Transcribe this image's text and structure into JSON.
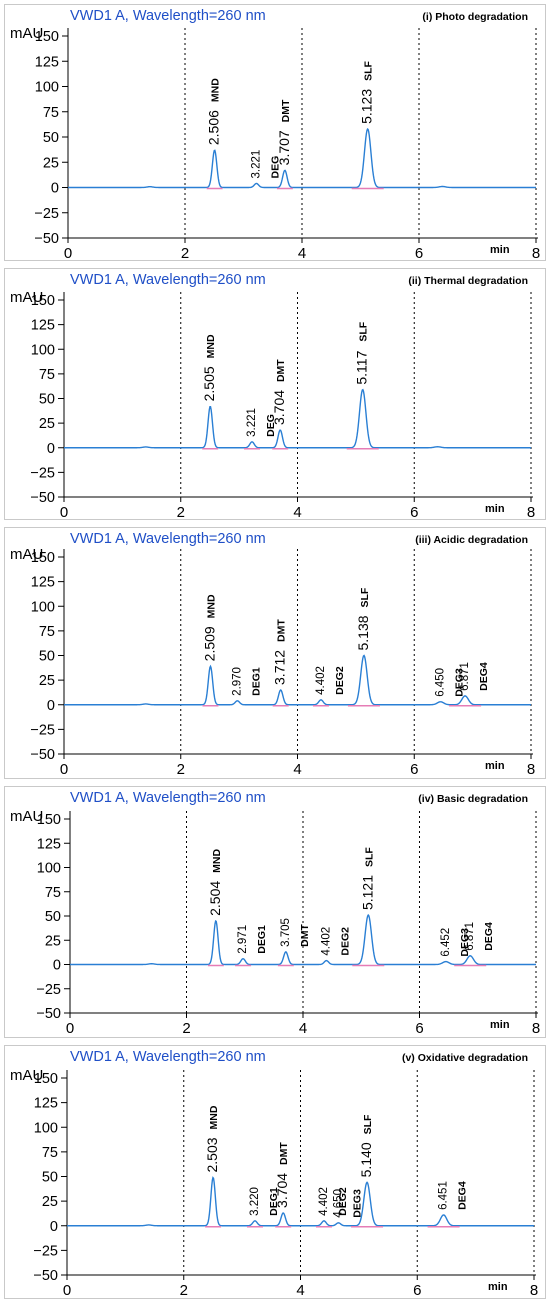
{
  "chart_data": [
    {
      "type": "line",
      "header": "VWD1 A, Wavelength=260 nm",
      "title": "(i) Photo degradation",
      "ylabel": "mAU",
      "xlabel": "min",
      "ylim": [
        -50,
        150
      ],
      "yticks": [
        "−50",
        "−25",
        "0",
        "25",
        "50",
        "75",
        "100",
        "125",
        "150"
      ],
      "xlim": [
        0,
        8
      ],
      "xticks": [
        "0",
        "2",
        "4",
        "6",
        "8"
      ],
      "grid": true,
      "peaks": [
        {
          "rt": 2.506,
          "height": 37,
          "rt_label": "2.506",
          "name": "MND",
          "big": true
        },
        {
          "rt": 3.221,
          "height": 4,
          "rt_label": "3.221",
          "name": "DEG",
          "big": false
        },
        {
          "rt": 3.707,
          "height": 17,
          "rt_label": "3.707",
          "name": "DMT",
          "big": true
        },
        {
          "rt": 5.123,
          "height": 58,
          "rt_label": "5.123",
          "name": "SLF",
          "big": true
        },
        {
          "rt": 6.4,
          "height": 1,
          "rt_label": "",
          "name": "",
          "big": false
        }
      ]
    },
    {
      "type": "line",
      "header": "VWD1 A, Wavelength=260 nm",
      "title": "(ii) Thermal degradation",
      "ylabel": "mAU",
      "xlabel": "min",
      "ylim": [
        -50,
        150
      ],
      "yticks": [
        "−50",
        "−25",
        "0",
        "25",
        "50",
        "75",
        "100",
        "125",
        "150"
      ],
      "xlim": [
        0,
        8
      ],
      "xticks": [
        "0",
        "2",
        "4",
        "6",
        "8"
      ],
      "grid": true,
      "peaks": [
        {
          "rt": 2.505,
          "height": 42,
          "rt_label": "2.505",
          "name": "MND",
          "big": true
        },
        {
          "rt": 3.221,
          "height": 6,
          "rt_label": "3.221",
          "name": "DEG",
          "big": false
        },
        {
          "rt": 3.704,
          "height": 18,
          "rt_label": "3.704",
          "name": "DMT",
          "big": true
        },
        {
          "rt": 5.117,
          "height": 59,
          "rt_label": "5.117",
          "name": "SLF",
          "big": true
        },
        {
          "rt": 6.4,
          "height": 1,
          "rt_label": "",
          "name": "",
          "big": false
        }
      ]
    },
    {
      "type": "line",
      "header": "VWD1 A, Wavelength=260 nm",
      "title": "(iii) Acidic degradation",
      "ylabel": "mAU",
      "xlabel": "min",
      "ylim": [
        -50,
        150
      ],
      "yticks": [
        "−50",
        "−25",
        "0",
        "25",
        "50",
        "75",
        "100",
        "125",
        "150"
      ],
      "xlim": [
        0,
        8
      ],
      "xticks": [
        "0",
        "2",
        "4",
        "6",
        "8"
      ],
      "grid": true,
      "peaks": [
        {
          "rt": 2.509,
          "height": 39,
          "rt_label": "2.509",
          "name": "MND",
          "big": true
        },
        {
          "rt": 2.97,
          "height": 4,
          "rt_label": "2.970",
          "name": "DEG1",
          "big": false
        },
        {
          "rt": 3.712,
          "height": 15,
          "rt_label": "3.712",
          "name": "DMT",
          "big": true
        },
        {
          "rt": 4.402,
          "height": 5,
          "rt_label": "4.402",
          "name": "DEG2",
          "big": false
        },
        {
          "rt": 5.138,
          "height": 50,
          "rt_label": "5.138",
          "name": "SLF",
          "big": true
        },
        {
          "rt": 6.45,
          "height": 3,
          "rt_label": "6.450",
          "name": "DEG3",
          "big": false
        },
        {
          "rt": 6.871,
          "height": 9,
          "rt_label": "6.871",
          "name": "DEG4",
          "big": false
        }
      ]
    },
    {
      "type": "line",
      "header": "VWD1 A, Wavelength=260 nm",
      "title": "(iv) Basic degradation",
      "ylabel": "mAU",
      "xlabel": "min",
      "ylim": [
        -50,
        150
      ],
      "yticks": [
        "−50",
        "−25",
        "0",
        "25",
        "50",
        "75",
        "100",
        "125",
        "150"
      ],
      "xlim": [
        0,
        8
      ],
      "xticks": [
        "0",
        "2",
        "4",
        "6",
        "8"
      ],
      "grid": true,
      "peaks": [
        {
          "rt": 2.504,
          "height": 45,
          "rt_label": "2.504",
          "name": "MND",
          "big": true
        },
        {
          "rt": 2.971,
          "height": 6,
          "rt_label": "2.971",
          "name": "DEG1",
          "big": false
        },
        {
          "rt": 3.705,
          "height": 13,
          "rt_label": "3.705",
          "name": "DMT",
          "big": false
        },
        {
          "rt": 4.402,
          "height": 4,
          "rt_label": "4.402",
          "name": "DEG2",
          "big": false
        },
        {
          "rt": 5.121,
          "height": 51,
          "rt_label": "5.121",
          "name": "SLF",
          "big": true
        },
        {
          "rt": 6.452,
          "height": 3,
          "rt_label": "6.452",
          "name": "DEG3",
          "big": false
        },
        {
          "rt": 6.871,
          "height": 9,
          "rt_label": "6.871",
          "name": "DEG4",
          "big": false
        }
      ]
    },
    {
      "type": "line",
      "header": "VWD1 A, Wavelength=260 nm",
      "title": "(v) Oxidative degradation",
      "ylabel": "mAU",
      "xlabel": "min",
      "ylim": [
        -50,
        150
      ],
      "yticks": [
        "−50",
        "−25",
        "0",
        "25",
        "50",
        "75",
        "100",
        "125",
        "150"
      ],
      "xlim": [
        0,
        8
      ],
      "xticks": [
        "0",
        "2",
        "4",
        "6",
        "8"
      ],
      "grid": true,
      "peaks": [
        {
          "rt": 2.503,
          "height": 49,
          "rt_label": "2.503",
          "name": "MND",
          "big": true
        },
        {
          "rt": 3.22,
          "height": 5,
          "rt_label": "3.220",
          "name": "DEG1",
          "big": false
        },
        {
          "rt": 3.704,
          "height": 13,
          "rt_label": "3.704",
          "name": "DMT",
          "big": true
        },
        {
          "rt": 4.402,
          "height": 5,
          "rt_label": "4.402",
          "name": "DEG2",
          "big": false
        },
        {
          "rt": 4.65,
          "height": 3,
          "rt_label": "4.650",
          "name": "DEG3",
          "big": false
        },
        {
          "rt": 5.14,
          "height": 44,
          "rt_label": "5.140",
          "name": "SLF",
          "big": true
        },
        {
          "rt": 6.451,
          "height": 11,
          "rt_label": "6.451",
          "name": "DEG4",
          "big": false
        }
      ]
    }
  ]
}
